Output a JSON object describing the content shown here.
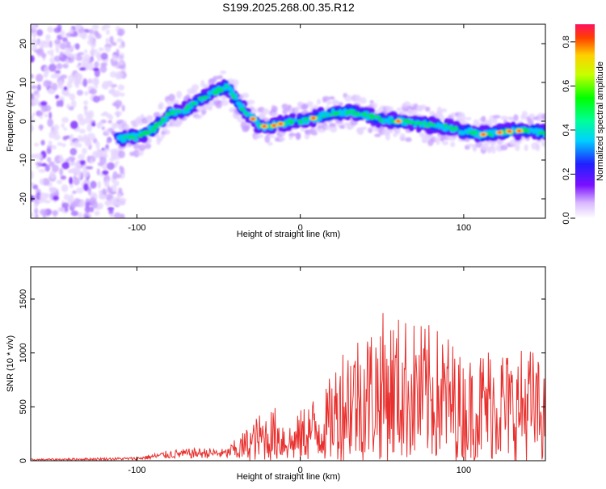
{
  "title": "S199.2025.268.00.35.R12",
  "chart_data": [
    {
      "type": "heatmap",
      "name": "spectrogram",
      "xlabel": "Height of straight line (km)",
      "ylabel": "Frequency (Hz)",
      "xlim": [
        -165,
        150
      ],
      "ylim": [
        -25,
        25
      ],
      "xticks": [
        -100,
        0,
        100
      ],
      "yticks": [
        -20,
        -10,
        0,
        10,
        20
      ],
      "colorbar": {
        "label": "Normalized spectral amplitude",
        "range": [
          0,
          0.88
        ],
        "ticks": [
          0.0,
          0.2,
          0.4,
          0.6,
          0.8
        ]
      },
      "ridge": {
        "x": [
          -115,
          -100,
          -90,
          -80,
          -70,
          -60,
          -50,
          -45,
          -40,
          -35,
          -30,
          -25,
          -20,
          -15,
          -10,
          -5,
          0,
          10,
          20,
          30,
          40,
          50,
          60,
          70,
          80,
          90,
          100,
          110,
          120,
          130,
          140,
          150
        ],
        "y": [
          -4.5,
          -4,
          -2,
          2,
          3,
          6,
          8,
          9,
          6,
          3,
          1,
          -1,
          -1.5,
          -1,
          -0.5,
          0,
          0,
          1,
          2,
          2.5,
          1.5,
          0.5,
          0,
          -0.5,
          -1,
          -1.5,
          -2.5,
          -3.5,
          -3,
          -2.5,
          -2.5,
          -3
        ]
      },
      "noise_region_x": [
        -165,
        -108
      ]
    },
    {
      "type": "line",
      "name": "snr",
      "xlabel": "Height of straight line (km)",
      "ylabel": "SNR (10 * v/v)",
      "xlim": [
        -165,
        150
      ],
      "ylim": [
        0,
        1800
      ],
      "xticks": [
        -100,
        0,
        100
      ],
      "yticks": [
        0,
        500,
        1000,
        1500
      ],
      "color": "#e8302e",
      "envelope": {
        "x": [
          -165,
          -100,
          -80,
          -60,
          -45,
          -35,
          -25,
          -15,
          -5,
          5,
          15,
          20,
          25,
          30,
          40,
          50,
          60,
          70,
          80,
          90,
          100,
          110,
          120,
          130,
          140,
          150
        ],
        "y": [
          15,
          30,
          90,
          110,
          100,
          260,
          420,
          480,
          330,
          560,
          620,
          820,
          1050,
          1150,
          1200,
          1320,
          1300,
          1250,
          1200,
          1150,
          900,
          1000,
          1100,
          950,
          1050,
          800
        ]
      }
    }
  ]
}
